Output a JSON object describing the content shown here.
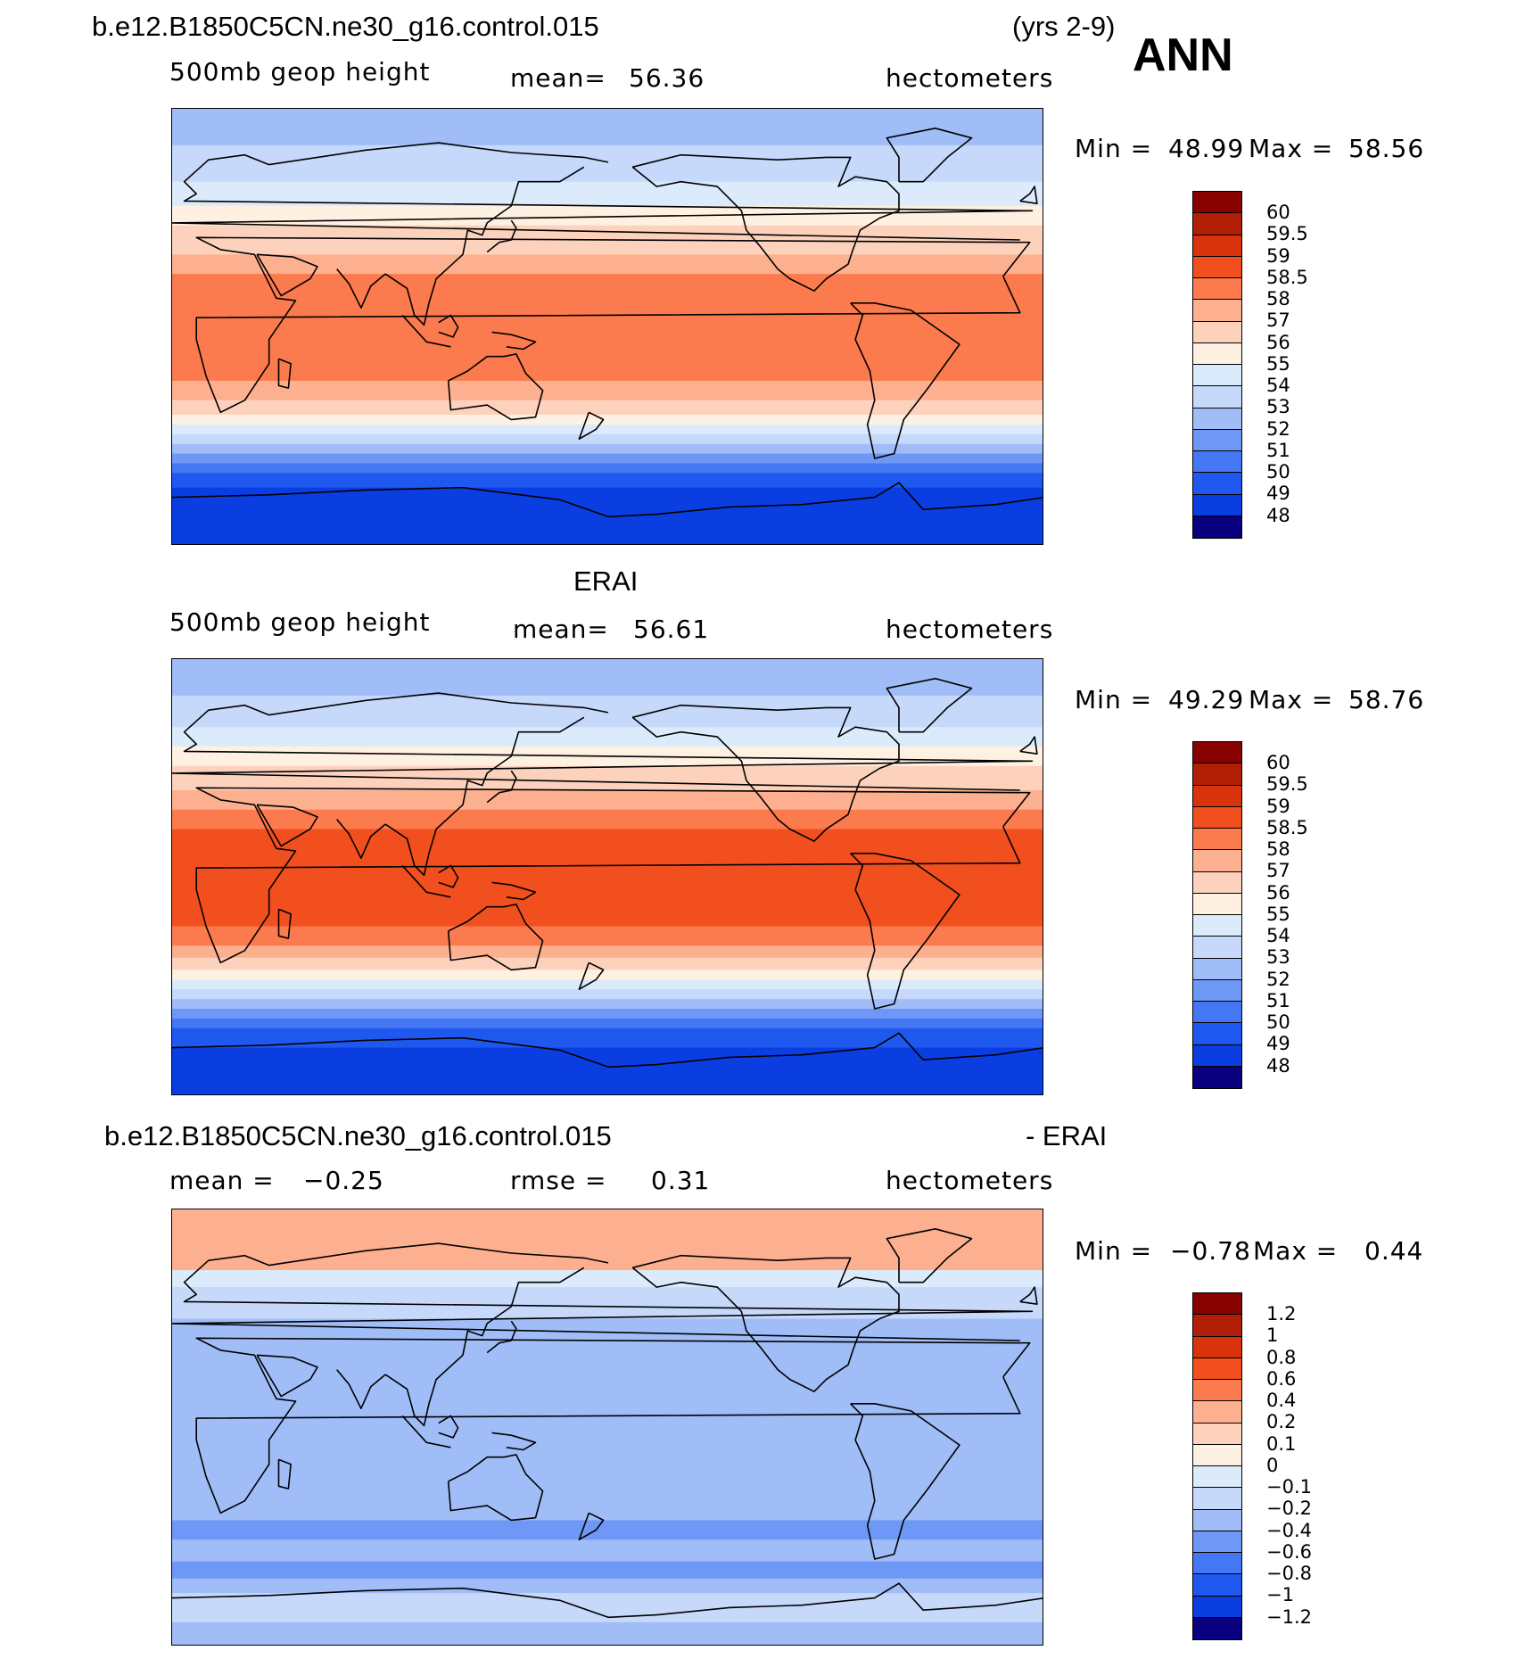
{
  "header": {
    "case_name": "b.e12.B1850C5CN.ne30_g16.control.015",
    "years": "(yrs 2-9)",
    "season": "ANN"
  },
  "palette": [
    "#08007e",
    "#0a1ea0",
    "#0c32c4",
    "#0a3ee0",
    "#1f58ee",
    "#4577f4",
    "#6f98f6",
    "#a0bdf8",
    "#c6d9fb",
    "#dcebfb",
    "#fff1e2",
    "#fdd2bd",
    "#fdb08f",
    "#fb7a4e",
    "#f24f1e",
    "#d9330b",
    "#b01e05",
    "#880000"
  ],
  "chart_data": [
    {
      "type": "heatmap",
      "id": "model",
      "title": "",
      "variable": "500mb geop height",
      "mean_label": "mean=",
      "mean_value": "56.36",
      "units": "hectometers",
      "min_label": "Min =",
      "min_value": "48.99",
      "max_label": "Max =",
      "max_value": "58.56",
      "colorbar_levels": [
        "60",
        "59.5",
        "59",
        "58.5",
        "58",
        "57",
        "56",
        "55",
        "54",
        "53",
        "52",
        "51",
        "50",
        "49",
        "48"
      ],
      "colorbar_colors": [
        "#880000",
        "#b01e05",
        "#d9330b",
        "#f24f1e",
        "#fb7a4e",
        "#fdb08f",
        "#fdd2bd",
        "#fff1e2",
        "#dcebfb",
        "#c6d9fb",
        "#a0bdf8",
        "#6f98f6",
        "#4577f4",
        "#1f58ee",
        "#0a3ee0",
        "#08007e"
      ],
      "lat_bands": [
        {
          "from": 90,
          "to": 75,
          "color": "#a0bdf8"
        },
        {
          "from": 75,
          "to": 60,
          "color": "#c6d9fb"
        },
        {
          "from": 60,
          "to": 50,
          "color": "#dcebfb"
        },
        {
          "from": 50,
          "to": 42,
          "color": "#fff1e2"
        },
        {
          "from": 42,
          "to": 30,
          "color": "#fdd2bd"
        },
        {
          "from": 30,
          "to": 22,
          "color": "#fdb08f"
        },
        {
          "from": 22,
          "to": -22,
          "color": "#fb7a4e"
        },
        {
          "from": -22,
          "to": -30,
          "color": "#fdb08f"
        },
        {
          "from": -30,
          "to": -36,
          "color": "#fdd2bd"
        },
        {
          "from": -36,
          "to": -40,
          "color": "#fff1e2"
        },
        {
          "from": -40,
          "to": -44,
          "color": "#dcebfb"
        },
        {
          "from": -44,
          "to": -48,
          "color": "#c6d9fb"
        },
        {
          "from": -48,
          "to": -52,
          "color": "#a0bdf8"
        },
        {
          "from": -52,
          "to": -56,
          "color": "#6f98f6"
        },
        {
          "from": -56,
          "to": -60,
          "color": "#4577f4"
        },
        {
          "from": -60,
          "to": -66,
          "color": "#1f58ee"
        },
        {
          "from": -66,
          "to": -90,
          "color": "#0a3ee0"
        }
      ]
    },
    {
      "type": "heatmap",
      "id": "obs",
      "title": "ERAI",
      "variable": "500mb geop height",
      "mean_label": "mean=",
      "mean_value": "56.61",
      "units": "hectometers",
      "min_label": "Min =",
      "min_value": "49.29",
      "max_label": "Max =",
      "max_value": "58.76",
      "colorbar_levels": [
        "60",
        "59.5",
        "59",
        "58.5",
        "58",
        "57",
        "56",
        "55",
        "54",
        "53",
        "52",
        "51",
        "50",
        "49",
        "48"
      ],
      "colorbar_colors": [
        "#880000",
        "#b01e05",
        "#d9330b",
        "#f24f1e",
        "#fb7a4e",
        "#fdb08f",
        "#fdd2bd",
        "#fff1e2",
        "#dcebfb",
        "#c6d9fb",
        "#a0bdf8",
        "#6f98f6",
        "#4577f4",
        "#1f58ee",
        "#0a3ee0",
        "#08007e"
      ],
      "lat_bands": [
        {
          "from": 90,
          "to": 75,
          "color": "#a0bdf8"
        },
        {
          "from": 75,
          "to": 62,
          "color": "#c6d9fb"
        },
        {
          "from": 62,
          "to": 54,
          "color": "#dcebfb"
        },
        {
          "from": 54,
          "to": 46,
          "color": "#fff1e2"
        },
        {
          "from": 46,
          "to": 36,
          "color": "#fdd2bd"
        },
        {
          "from": 36,
          "to": 28,
          "color": "#fdb08f"
        },
        {
          "from": 28,
          "to": 20,
          "color": "#fb7a4e"
        },
        {
          "from": 20,
          "to": -20,
          "color": "#f24f1e"
        },
        {
          "from": -20,
          "to": -28,
          "color": "#fb7a4e"
        },
        {
          "from": -28,
          "to": -33,
          "color": "#fdb08f"
        },
        {
          "from": -33,
          "to": -38,
          "color": "#fdd2bd"
        },
        {
          "from": -38,
          "to": -42,
          "color": "#fff1e2"
        },
        {
          "from": -42,
          "to": -46,
          "color": "#dcebfb"
        },
        {
          "from": -46,
          "to": -50,
          "color": "#c6d9fb"
        },
        {
          "from": -50,
          "to": -54,
          "color": "#a0bdf8"
        },
        {
          "from": -54,
          "to": -58,
          "color": "#6f98f6"
        },
        {
          "from": -58,
          "to": -62,
          "color": "#4577f4"
        },
        {
          "from": -62,
          "to": -70,
          "color": "#1f58ee"
        },
        {
          "from": -70,
          "to": -90,
          "color": "#0a3ee0"
        }
      ]
    },
    {
      "type": "heatmap",
      "id": "diff",
      "title_left": "b.e12.B1850C5CN.ne30_g16.control.015",
      "title_right": "- ERAI",
      "mean_label": "mean =",
      "mean_value": "−0.25",
      "rmse_label": "rmse =",
      "rmse_value": "0.31",
      "units": "hectometers",
      "min_label": "Min =",
      "min_value": "−0.78",
      "max_label": "Max =",
      "max_value": "0.44",
      "colorbar_levels": [
        "1.2",
        "1",
        "0.8",
        "0.6",
        "0.4",
        "0.2",
        "0.1",
        "0",
        "−0.1",
        "−0.2",
        "−0.4",
        "−0.6",
        "−0.8",
        "−1",
        "−1.2"
      ],
      "colorbar_colors": [
        "#880000",
        "#b01e05",
        "#d9330b",
        "#f24f1e",
        "#fb7a4e",
        "#fdb08f",
        "#fdd2bd",
        "#fff1e2",
        "#dcebfb",
        "#c6d9fb",
        "#a0bdf8",
        "#6f98f6",
        "#4577f4",
        "#1f58ee",
        "#0a3ee0",
        "#08007e"
      ],
      "lat_bands": [
        {
          "from": 90,
          "to": 65,
          "color": "#fdb08f"
        },
        {
          "from": 65,
          "to": 58,
          "color": "#dcebfb"
        },
        {
          "from": 58,
          "to": 45,
          "color": "#c6d9fb"
        },
        {
          "from": 45,
          "to": -25,
          "color": "#a0bdf8"
        },
        {
          "from": -25,
          "to": -38,
          "color": "#a0bdf8"
        },
        {
          "from": -38,
          "to": -46,
          "color": "#6f98f6"
        },
        {
          "from": -46,
          "to": -55,
          "color": "#a0bdf8"
        },
        {
          "from": -55,
          "to": -62,
          "color": "#6f98f6"
        },
        {
          "from": -62,
          "to": -68,
          "color": "#a0bdf8"
        },
        {
          "from": -68,
          "to": -80,
          "color": "#c6d9fb"
        },
        {
          "from": -80,
          "to": -90,
          "color": "#a0bdf8"
        }
      ]
    }
  ]
}
